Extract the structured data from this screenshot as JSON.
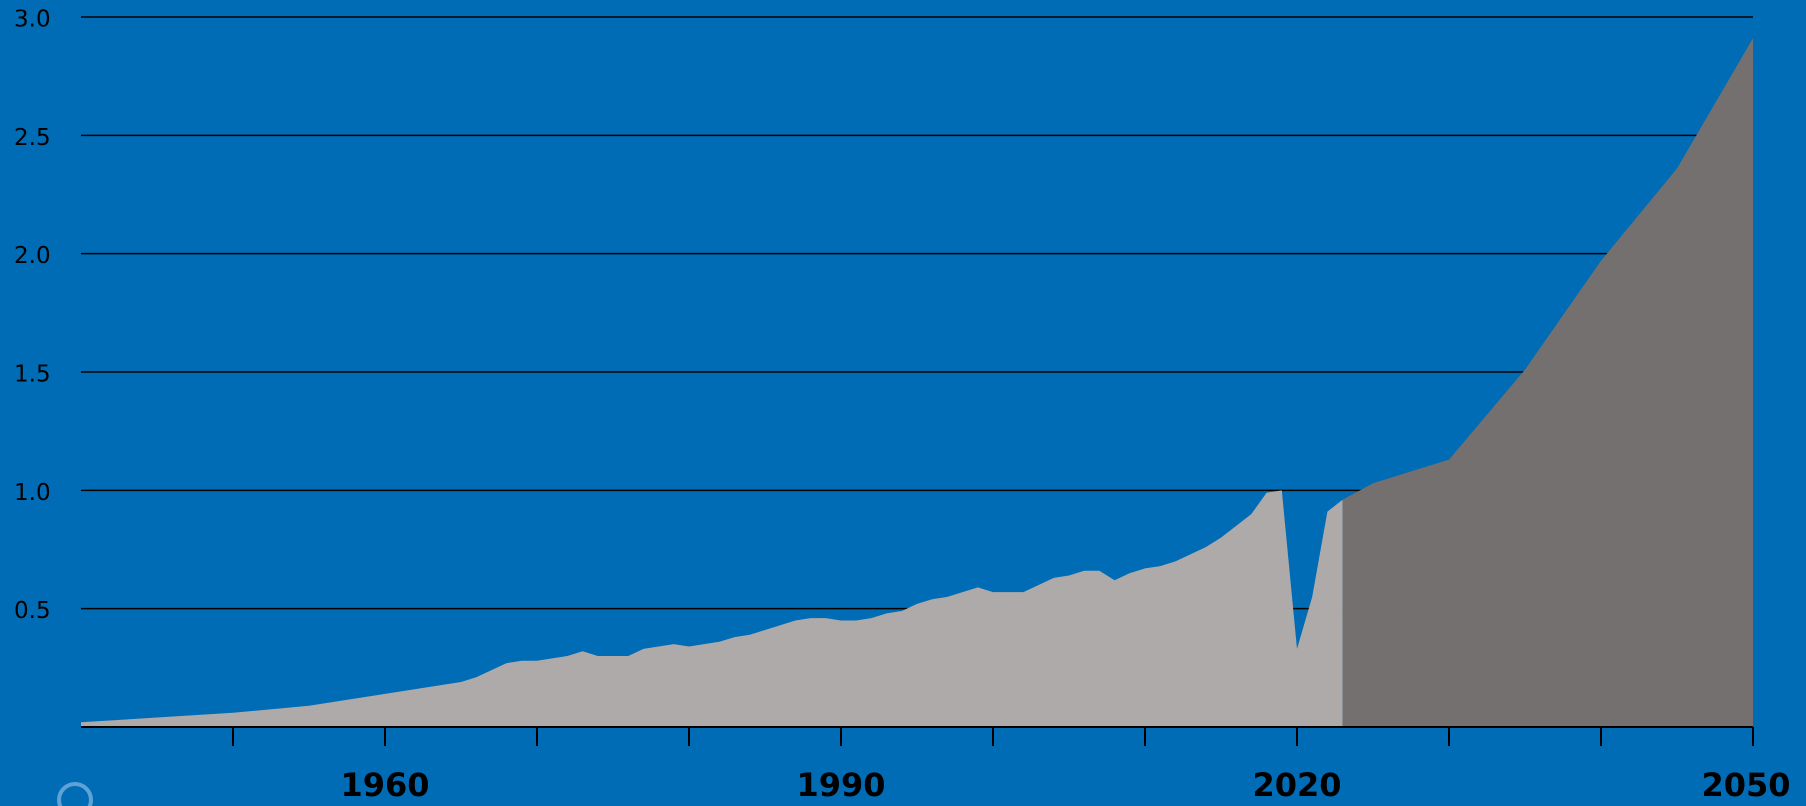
{
  "chart_data": {
    "type": "area",
    "xlim": [
      1940,
      2050
    ],
    "xticks": [
      1960,
      1990,
      2020,
      2050
    ],
    "xminorticks": [
      1950,
      1970,
      1980,
      2000,
      2010,
      2030,
      2040
    ],
    "ylim": [
      0,
      3
    ],
    "yticks": [
      0.5,
      {
        "value": 1,
        "label": "1.0"
      },
      1.5,
      {
        "value": 2,
        "label": "2.0"
      },
      2.5,
      {
        "value": 3,
        "label": "3.0"
      }
    ],
    "grid": true,
    "series": [
      {
        "color": "#aeaaa9",
        "x": [
          1940,
          1945,
          1950,
          1955,
          1958,
          1960,
          1962,
          1965,
          1966,
          1968,
          1969,
          1970,
          1972,
          1973,
          1974,
          1975,
          1976,
          1977,
          1978,
          1979,
          1980,
          1981,
          1982,
          1983,
          1984,
          1985,
          1986,
          1987,
          1988,
          1989,
          1990,
          1991,
          1992,
          1993,
          1994,
          1995,
          1996,
          1997,
          1998,
          1999,
          2000,
          2001,
          2002,
          2003,
          2004,
          2005,
          2006,
          2007,
          2008,
          2009,
          2010,
          2011,
          2012,
          2013,
          2014,
          2015,
          2016,
          2017,
          2018,
          2019,
          2020,
          2021,
          2022,
          2023
        ],
        "values": [
          0.02,
          0.04,
          0.06,
          0.09,
          0.12,
          0.14,
          0.16,
          0.19,
          0.21,
          0.27,
          0.28,
          0.28,
          0.3,
          0.32,
          0.3,
          0.3,
          0.3,
          0.33,
          0.34,
          0.35,
          0.34,
          0.35,
          0.36,
          0.38,
          0.39,
          0.41,
          0.43,
          0.45,
          0.46,
          0.46,
          0.45,
          0.45,
          0.46,
          0.48,
          0.49,
          0.52,
          0.54,
          0.55,
          0.57,
          0.59,
          0.57,
          0.57,
          0.57,
          0.6,
          0.63,
          0.64,
          0.66,
          0.66,
          0.62,
          0.65,
          0.67,
          0.68,
          0.7,
          0.73,
          0.76,
          0.8,
          0.85,
          0.9,
          0.99,
          1.0,
          0.33,
          0.55,
          0.91,
          0.96
        ]
      },
      {
        "color": "#73706f",
        "x": [
          2023,
          2025,
          2030,
          2035,
          2040,
          2045,
          2050
        ],
        "values": [
          0.96,
          1.03,
          1.13,
          1.51,
          1.97,
          2.36,
          2.91
        ]
      }
    ]
  }
}
